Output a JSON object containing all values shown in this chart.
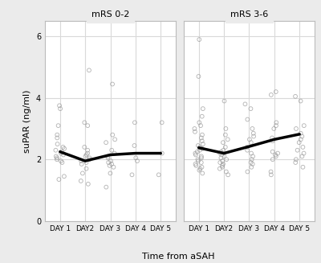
{
  "panel_titles": [
    "mRS 0-2",
    "mRS 3-6"
  ],
  "xlabel": "Time from aSAH",
  "ylabel": "suPAR (ng/ml)",
  "x_labels": [
    "DAY 1",
    "DAY2",
    "DAY 3",
    "DAY 4",
    "DAY 5"
  ],
  "x_positions": [
    1,
    2,
    3,
    4,
    5
  ],
  "ylim": [
    0,
    6.5
  ],
  "yticks": [
    0,
    2,
    4,
    6
  ],
  "mean_line_left": [
    2.25,
    1.95,
    2.15,
    2.2,
    2.2
  ],
  "mean_line_right": [
    2.38,
    2.2,
    2.42,
    2.65,
    2.82
  ],
  "scatter_left": {
    "day1": [
      1.35,
      1.45,
      1.9,
      1.95,
      2.0,
      2.05,
      2.1,
      2.15,
      2.2,
      2.25,
      2.3,
      2.35,
      2.4,
      2.5,
      2.7,
      2.8,
      3.1,
      3.65,
      3.75
    ],
    "day2": [
      1.2,
      1.3,
      1.55,
      1.7,
      1.85,
      1.9,
      1.95,
      2.0,
      2.05,
      2.1,
      2.15,
      2.2,
      2.3,
      2.4,
      3.1,
      3.2,
      4.9
    ],
    "day3": [
      1.1,
      1.55,
      1.75,
      1.8,
      1.85,
      1.9,
      1.95,
      2.05,
      2.1,
      2.2,
      2.3,
      2.55,
      2.65,
      2.8,
      4.45
    ],
    "day4": [
      1.5,
      1.95,
      2.05,
      2.45,
      3.2
    ],
    "day5": [
      1.5,
      2.2,
      3.2
    ]
  },
  "scatter_right": {
    "day1": [
      1.55,
      1.65,
      1.7,
      1.75,
      1.8,
      1.85,
      1.9,
      1.95,
      2.0,
      2.05,
      2.1,
      2.15,
      2.2,
      2.25,
      2.3,
      2.35,
      2.4,
      2.45,
      2.5,
      2.6,
      2.7,
      2.8,
      2.9,
      3.0,
      3.1,
      3.2,
      3.4,
      3.65,
      4.7,
      5.9
    ],
    "day2": [
      1.5,
      1.6,
      1.7,
      1.75,
      1.8,
      1.85,
      1.9,
      1.95,
      2.0,
      2.05,
      2.1,
      2.15,
      2.2,
      2.25,
      2.3,
      2.4,
      2.55,
      2.65,
      2.8,
      3.0,
      3.9
    ],
    "day3": [
      1.6,
      1.75,
      1.85,
      1.9,
      2.0,
      2.1,
      2.2,
      2.3,
      2.4,
      2.55,
      2.65,
      2.75,
      2.85,
      3.0,
      3.3,
      3.65,
      3.8
    ],
    "day4": [
      1.5,
      1.6,
      2.0,
      2.1,
      2.15,
      2.2,
      2.25,
      2.6,
      2.7,
      3.0,
      3.1,
      3.2,
      4.1,
      4.2
    ],
    "day5": [
      1.75,
      1.9,
      2.0,
      2.1,
      2.2,
      2.3,
      2.4,
      2.55,
      2.65,
      2.75,
      2.85,
      3.0,
      3.1,
      3.9,
      4.05
    ]
  },
  "panel_bg_color": "#ebebeb",
  "plot_bg_color": "#ffffff",
  "grid_color": "#d9d9d9",
  "scatter_edge_color": "#999999",
  "line_color": "#000000",
  "line_width": 2.5,
  "scatter_size": 12,
  "scatter_alpha": 0.75
}
